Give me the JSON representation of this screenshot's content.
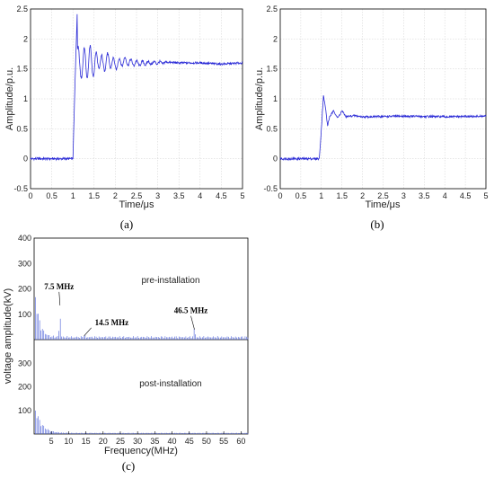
{
  "chart_data": [
    {
      "type": "line",
      "caption": "(a)",
      "xlabel": "Time/μs",
      "ylabel": "Amplitude/p.u.",
      "xlim": [
        0,
        5
      ],
      "ylim": [
        -0.5,
        2.5
      ],
      "xticks": [
        "0",
        "0.5",
        "1",
        "1.5",
        "2",
        "2.5",
        "3",
        "3.5",
        "4",
        "4.5",
        "5"
      ],
      "yticks": [
        "-0.5",
        "0",
        "0.5",
        "1",
        "1.5",
        "2",
        "2.5"
      ],
      "grid": true,
      "color": "#2a2ad6",
      "series": [
        {
          "x": [
            0,
            0.5,
            1.0,
            1.05,
            1.1,
            1.15,
            1.2,
            1.3,
            1.4,
            1.5,
            1.6,
            1.7,
            1.8,
            2.0,
            2.2,
            2.5,
            3.0,
            3.5,
            4.0,
            4.5,
            5.0
          ],
          "y": [
            0,
            0,
            0,
            1.3,
            2.4,
            0.7,
            1.9,
            1.35,
            1.95,
            1.3,
            1.95,
            1.4,
            1.85,
            1.45,
            1.75,
            1.55,
            1.62,
            1.6,
            1.6,
            1.58,
            1.6
          ]
        }
      ]
    },
    {
      "type": "line",
      "caption": "(b)",
      "xlabel": "Time/μs",
      "ylabel": "Amplitude/p.u.",
      "xlim": [
        0,
        5
      ],
      "ylim": [
        -0.5,
        2.5
      ],
      "xticks": [
        "0",
        "0.5",
        "1",
        "1.5",
        "2",
        "2.5",
        "3",
        "3.5",
        "4",
        "4.5",
        "5"
      ],
      "yticks": [
        "-0.5",
        "0",
        "0.5",
        "1",
        "1.5",
        "2",
        "2.5"
      ],
      "grid": true,
      "color": "#2a2ad6",
      "series": [
        {
          "x": [
            0,
            0.5,
            0.95,
            1.0,
            1.05,
            1.1,
            1.15,
            1.2,
            1.3,
            1.4,
            1.5,
            1.6,
            1.8,
            2.0,
            3.0,
            4.0,
            5.0
          ],
          "y": [
            0,
            0,
            0,
            0.5,
            1.05,
            0.85,
            0.55,
            0.7,
            0.8,
            0.68,
            0.8,
            0.7,
            0.72,
            0.7,
            0.71,
            0.7,
            0.71
          ]
        }
      ]
    },
    {
      "type": "bar",
      "caption": "(c)",
      "xlabel": "Frequency(MHz)",
      "ylabel": "voltage amplitude(kV)",
      "xlim": [
        0,
        62
      ],
      "xticks": [
        "5",
        "10",
        "15",
        "20",
        "25",
        "30",
        "35",
        "40",
        "45",
        "50",
        "55",
        "60"
      ],
      "panels": [
        {
          "label": "pre-installation",
          "ylim": [
            0,
            400
          ],
          "yticks": [
            "100",
            "200",
            "300",
            "400"
          ],
          "annotations": [
            {
              "text": "7.5 MHz",
              "x": 7.5,
              "y": 135
            },
            {
              "text": "14.5 MHz",
              "x": 14.5,
              "y": 15
            },
            {
              "text": "46.5 MHz",
              "x": 46.5,
              "y": 40
            }
          ]
        },
        {
          "label": "post-installation",
          "ylim": [
            0,
            400
          ],
          "yticks": [
            "100",
            "200",
            "300"
          ]
        }
      ]
    }
  ]
}
